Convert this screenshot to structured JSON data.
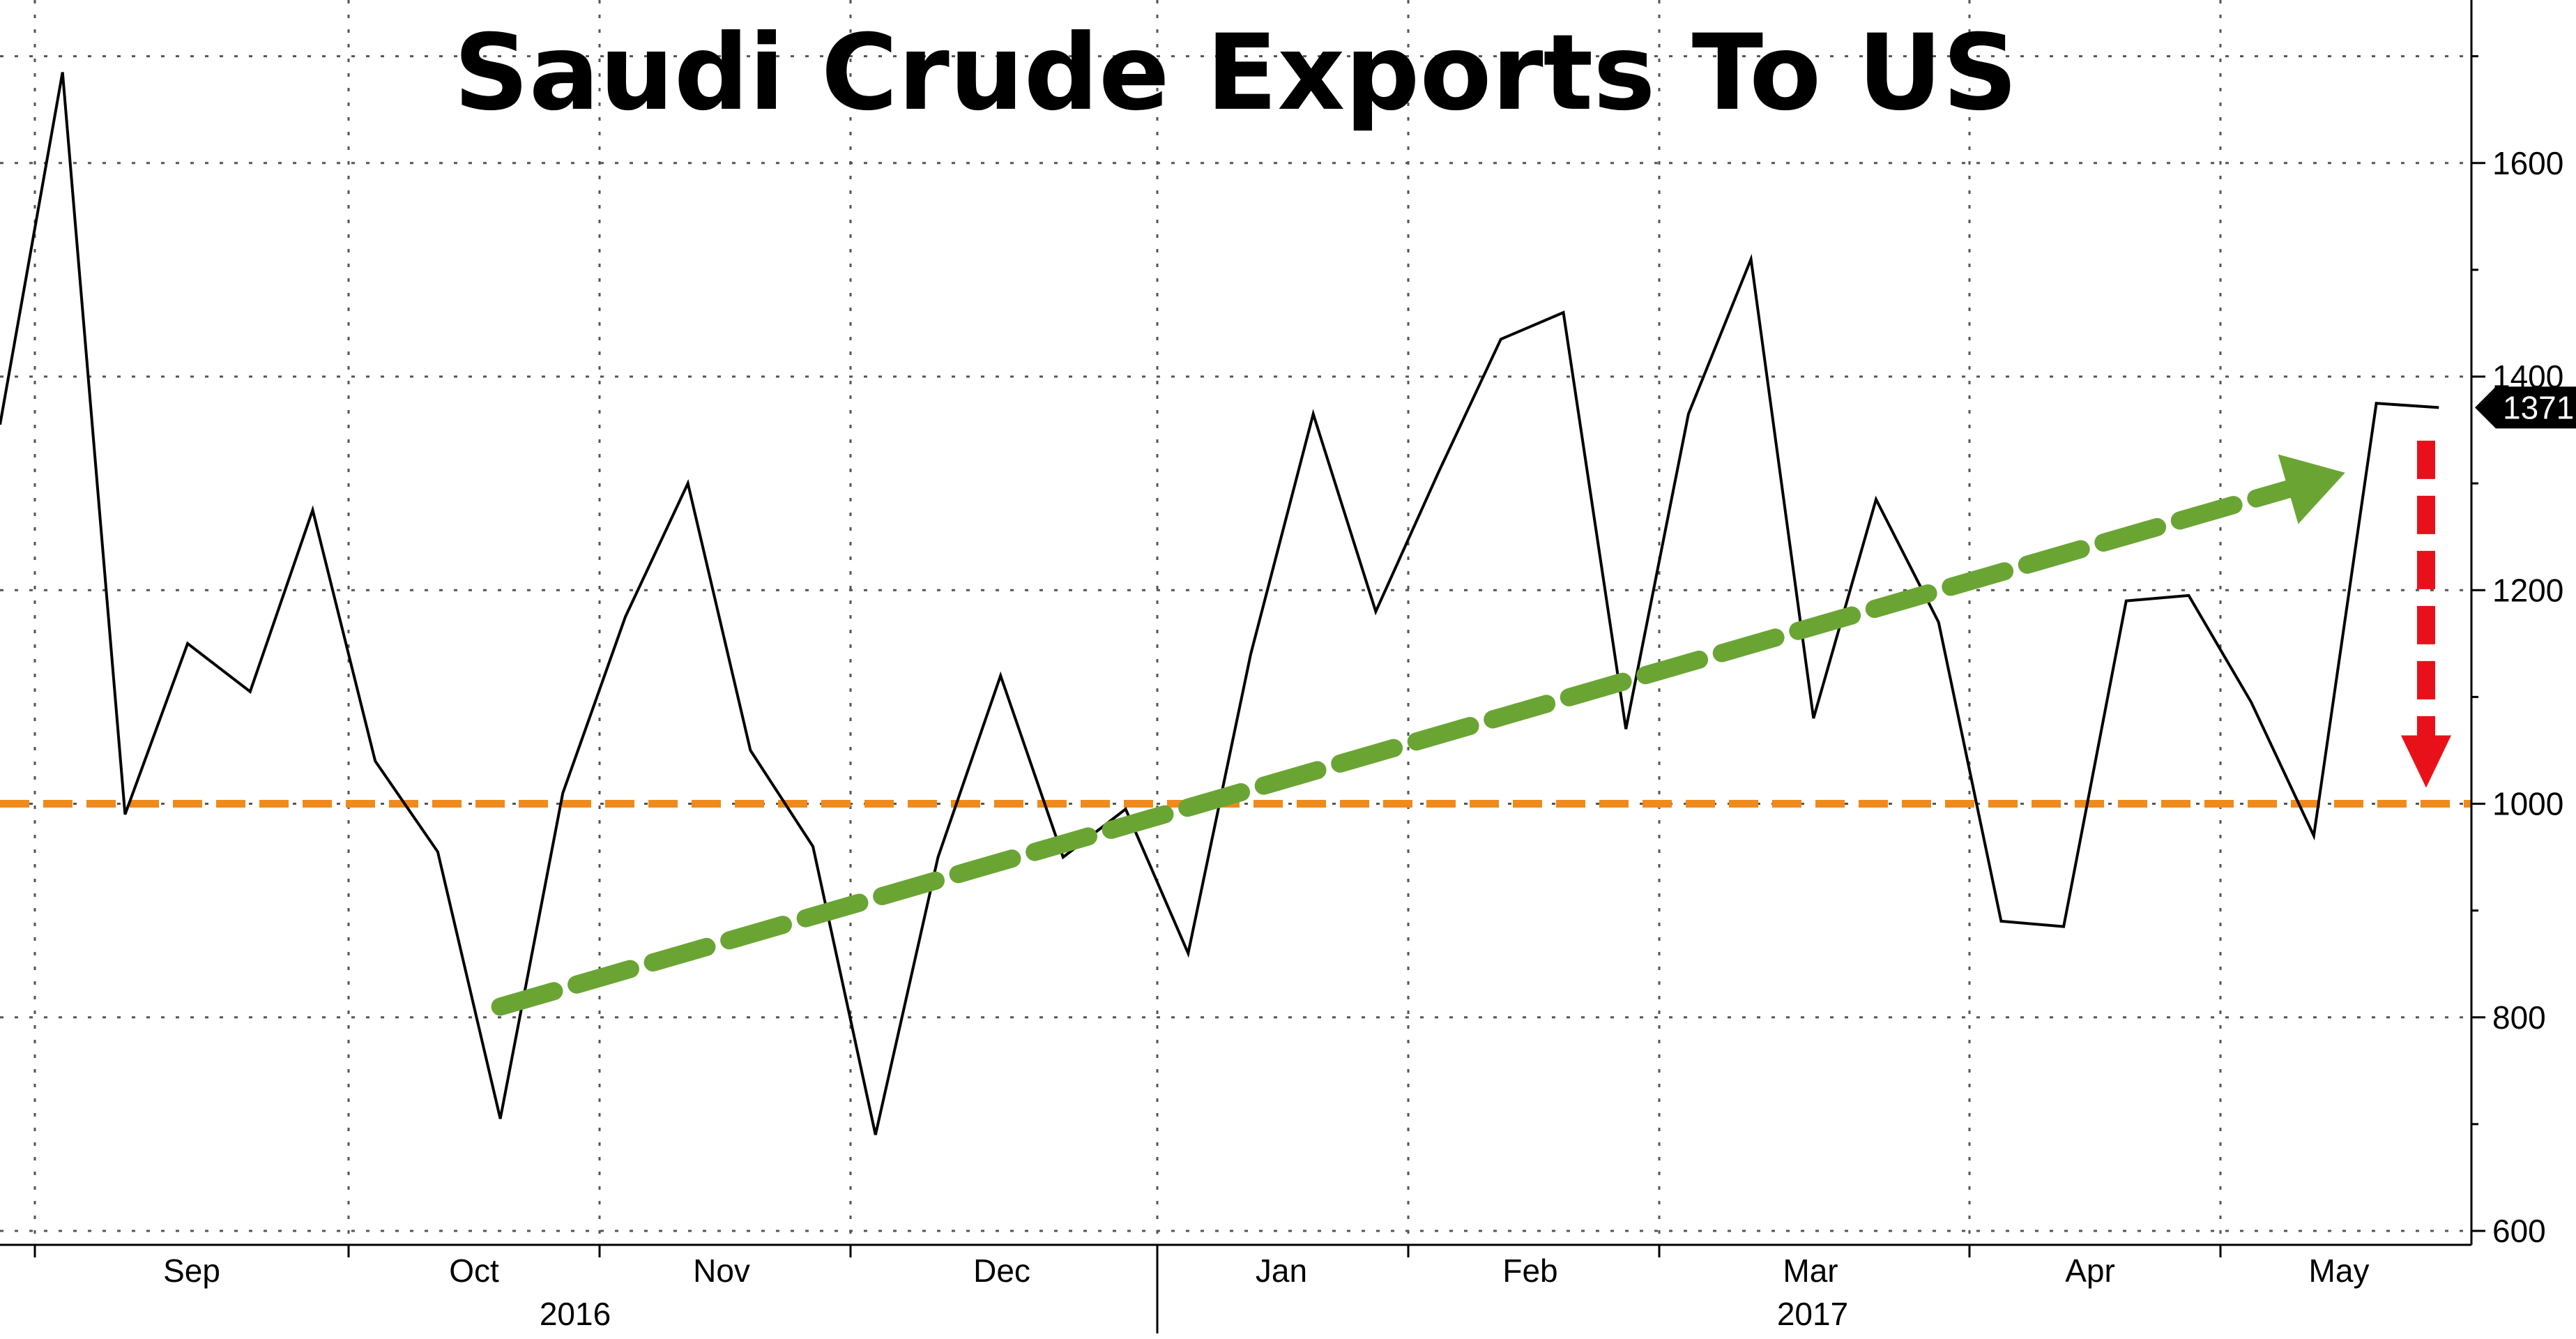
{
  "chart_data": {
    "type": "line",
    "title": "Saudi Crude Exports To US",
    "xlabel": "",
    "ylabel": "",
    "ylim": [
      580,
      1720
    ],
    "yticks": [
      600,
      800,
      1000,
      1200,
      1400,
      1600
    ],
    "grid": true,
    "months": [
      "Sep",
      "Oct",
      "Nov",
      "Dec",
      "Jan",
      "Feb",
      "Mar",
      "Apr",
      "May"
    ],
    "years": [
      "2016",
      "2017"
    ],
    "last_value_label": "1371",
    "series": [
      {
        "values": [
          1355,
          1685,
          990,
          1150,
          1105,
          1275,
          1040,
          955,
          705,
          1010,
          1175,
          1300,
          1050,
          960,
          690,
          950,
          1120,
          950,
          995,
          860,
          1140,
          1365,
          1180,
          1310,
          1435,
          1460,
          1070,
          1365,
          1510,
          1080,
          1285,
          1170,
          890,
          885,
          1190,
          1195,
          1095,
          970,
          1375,
          1371
        ],
        "color": "#000000"
      }
    ],
    "annotations": [
      {
        "kind": "reference-line",
        "y": 1000,
        "color": "#f08a1c"
      },
      {
        "kind": "trend-arrow",
        "from": [
          8,
          810
        ],
        "to": [
          37.5,
          1310
        ],
        "color": "#6aa534"
      },
      {
        "kind": "down-arrow",
        "from": [
          38.5,
          1340
        ],
        "to": [
          38.5,
          1015
        ],
        "color": "#e8111a"
      }
    ]
  }
}
